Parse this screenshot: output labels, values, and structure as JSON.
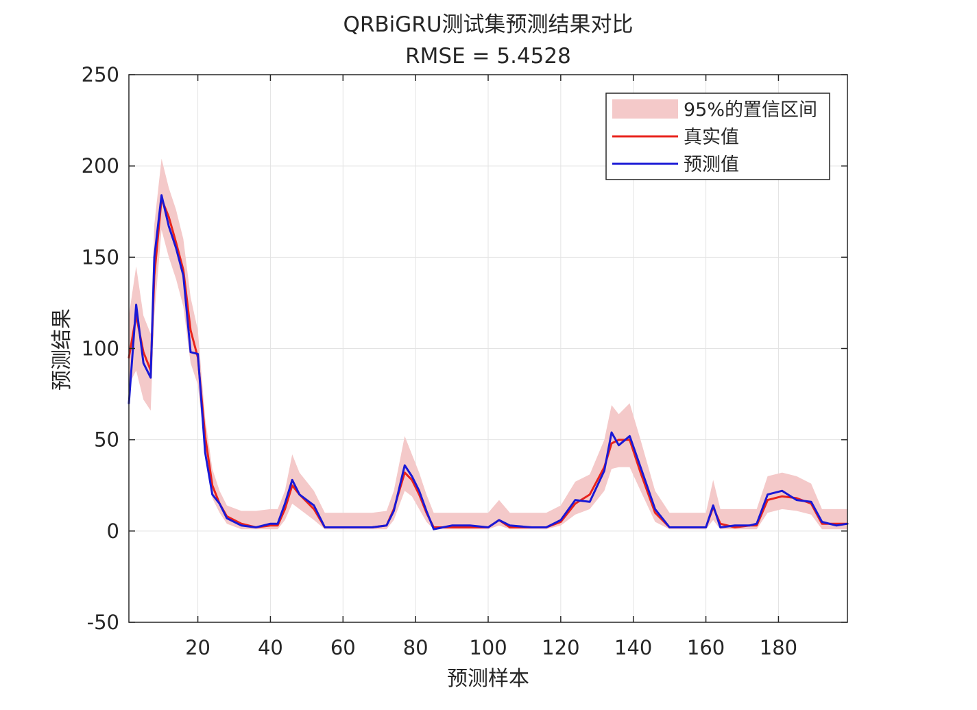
{
  "chart_data": {
    "type": "line",
    "title": "QRBiGRU测试集预测结果对比",
    "subtitle": "RMSE = 5.4528",
    "xlabel": "预测样本",
    "ylabel": "预测结果",
    "xlim": [
      1,
      199
    ],
    "ylim": [
      -50,
      250
    ],
    "xticks": [
      20,
      40,
      60,
      80,
      100,
      120,
      140,
      160,
      180
    ],
    "yticks": [
      -50,
      0,
      50,
      100,
      150,
      200,
      250
    ],
    "grid": true,
    "legend": {
      "placement": "top-right",
      "entries": [
        "95%的置信区间",
        "真实值",
        "预测值"
      ]
    },
    "colors": {
      "band": "#f4c9c9",
      "actual": "#e8231c",
      "predicted": "#1a19d6",
      "grid": "#e3e3e3",
      "axis": "#262626"
    },
    "x": [
      1,
      3,
      5,
      7,
      8,
      10,
      12,
      14,
      16,
      18,
      20,
      22,
      24,
      26,
      28,
      32,
      36,
      40,
      42,
      44,
      46,
      48,
      50,
      52,
      55,
      58,
      62,
      68,
      72,
      74,
      77,
      79,
      81,
      83,
      85,
      90,
      95,
      100,
      103,
      106,
      112,
      116,
      120,
      124,
      128,
      132,
      134,
      136,
      139,
      142,
      146,
      150,
      155,
      160,
      162,
      164,
      168,
      172,
      174,
      177,
      181,
      185,
      189,
      192,
      196,
      199
    ],
    "series": [
      {
        "name": "真实值",
        "values": [
          95,
          118,
          98,
          88,
          140,
          182,
          172,
          158,
          143,
          110,
          95,
          52,
          25,
          15,
          8,
          4,
          2,
          3,
          3,
          12,
          25,
          20,
          16,
          12,
          2,
          2,
          2,
          2,
          3,
          12,
          32,
          28,
          20,
          10,
          2,
          2,
          2,
          2,
          6,
          2,
          2,
          2,
          5,
          15,
          20,
          35,
          48,
          50,
          50,
          32,
          10,
          2,
          2,
          2,
          13,
          4,
          2,
          3,
          3,
          17,
          19,
          18,
          15,
          4,
          4,
          4
        ]
      },
      {
        "name": "预测值",
        "values": [
          70,
          124,
          92,
          84,
          150,
          184,
          167,
          155,
          140,
          98,
          97,
          43,
          20,
          15,
          7,
          3,
          2,
          4,
          4,
          15,
          28,
          20,
          17,
          14,
          2,
          2,
          2,
          2,
          3,
          11,
          36,
          30,
          22,
          11,
          1,
          3,
          3,
          2,
          6,
          3,
          2,
          2,
          6,
          17,
          16,
          33,
          54,
          47,
          52,
          35,
          12,
          2,
          2,
          2,
          14,
          2,
          3,
          3,
          4,
          20,
          22,
          17,
          16,
          5,
          3,
          4
        ]
      }
    ],
    "band": {
      "name": "95%的置信区间",
      "lower": [
        80,
        88,
        72,
        66,
        118,
        165,
        150,
        138,
        123,
        92,
        80,
        44,
        18,
        10,
        4,
        1,
        1,
        1,
        1,
        6,
        15,
        12,
        9,
        6,
        1,
        1,
        1,
        1,
        1,
        6,
        22,
        19,
        12,
        5,
        1,
        1,
        1,
        1,
        3,
        1,
        1,
        1,
        3,
        9,
        12,
        22,
        34,
        35,
        35,
        22,
        5,
        1,
        1,
        1,
        6,
        1,
        1,
        1,
        1,
        10,
        12,
        11,
        9,
        1,
        1,
        1
      ],
      "upper": [
        118,
        145,
        118,
        108,
        168,
        204,
        188,
        176,
        160,
        128,
        110,
        62,
        34,
        22,
        14,
        11,
        11,
        12,
        12,
        22,
        42,
        32,
        27,
        22,
        10,
        10,
        10,
        10,
        11,
        22,
        52,
        42,
        32,
        20,
        10,
        10,
        10,
        10,
        17,
        10,
        10,
        10,
        14,
        27,
        31,
        50,
        69,
        64,
        70,
        50,
        22,
        10,
        10,
        10,
        28,
        12,
        12,
        12,
        12,
        30,
        32,
        30,
        26,
        12,
        12,
        12
      ]
    }
  }
}
